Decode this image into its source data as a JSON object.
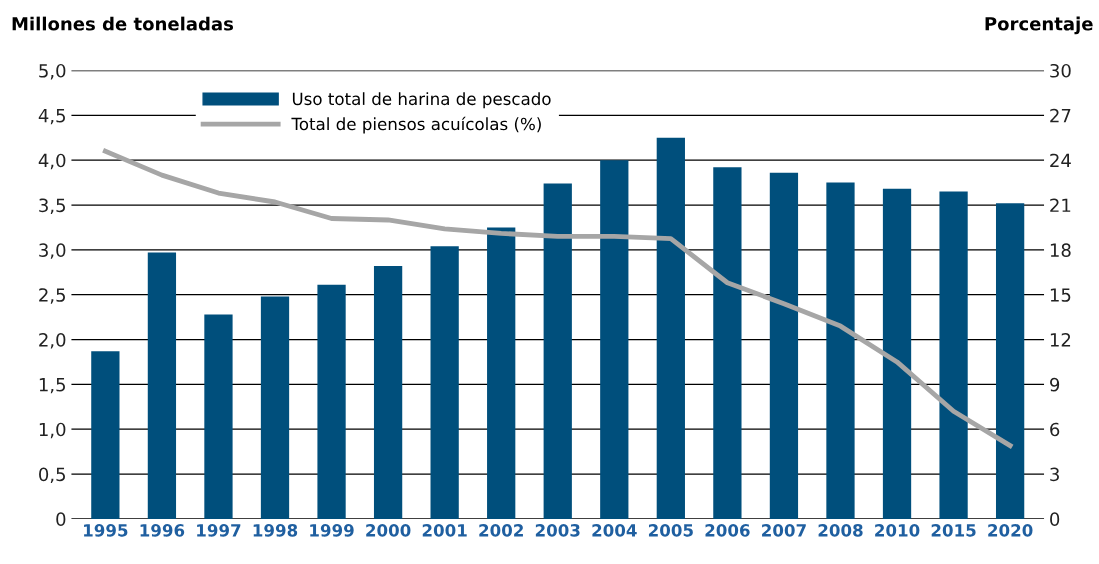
{
  "chart_data": {
    "type": "bar",
    "ylabel": "Millones de toneladas",
    "y2label": "Porcentaje",
    "categories": [
      "1995",
      "1996",
      "1997",
      "1998",
      "1999",
      "2000",
      "2001",
      "2002",
      "2003",
      "2004",
      "2005",
      "2006",
      "2007",
      "2008",
      "2010",
      "2015",
      "2020"
    ],
    "series": [
      {
        "name": "Uso total de harina de pescado",
        "color": "#004f7c",
        "values": [
          1.87,
          2.97,
          2.28,
          2.48,
          2.61,
          2.82,
          3.04,
          3.25,
          3.74,
          4.0,
          4.25,
          3.92,
          3.86,
          3.75,
          3.68,
          3.65,
          3.52
        ]
      },
      {
        "name": "Total de piensos acuícolas (%)",
        "type": "line",
        "axis": "y2",
        "color": "#a6a6a6",
        "values": [
          24.6,
          23.0,
          21.8,
          21.2,
          20.1,
          20.0,
          19.4,
          19.1,
          18.9,
          18.9,
          18.75,
          15.8,
          14.4,
          12.9,
          10.5,
          7.2,
          4.9
        ]
      }
    ],
    "ylim": [
      0,
      5
    ],
    "yticks": [
      {
        "value": 0,
        "label": "0"
      },
      {
        "value": 0.5,
        "label": "0,5"
      },
      {
        "value": 1,
        "label": "1,0"
      },
      {
        "value": 1.5,
        "label": "1,5"
      },
      {
        "value": 2,
        "label": "2,0"
      },
      {
        "value": 2.5,
        "label": "2,5"
      },
      {
        "value": 3,
        "label": "3,0"
      },
      {
        "value": 3.5,
        "label": "3,5"
      },
      {
        "value": 4,
        "label": "4,0"
      },
      {
        "value": 4.5,
        "label": "4,5"
      },
      {
        "value": 5,
        "label": "5,0"
      }
    ],
    "y2lim": [
      0,
      30
    ],
    "y2ticks": [
      0,
      3,
      6,
      9,
      12,
      15,
      18,
      21,
      24,
      27,
      30
    ],
    "grid": "y",
    "legend": "top left",
    "marker": "none",
    "line_style": "solid"
  }
}
